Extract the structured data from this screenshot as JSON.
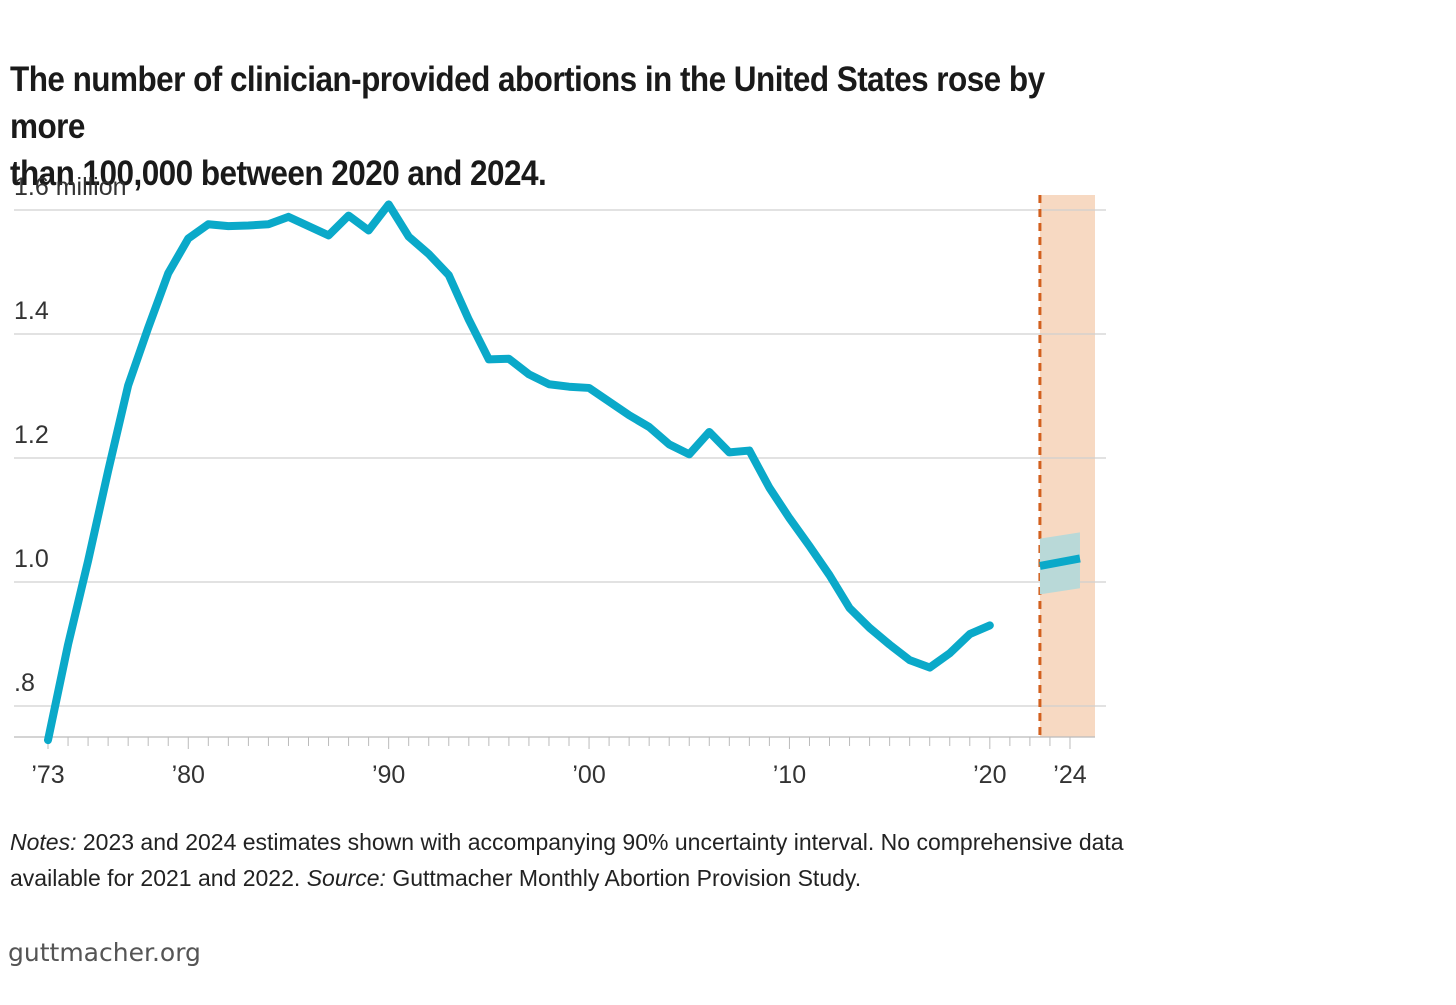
{
  "title": {
    "line1": "The number of clinician-provided abortions in the United States rose by more",
    "line2": "than 100,000 between 2020 and 2024."
  },
  "colors": {
    "line": "#0aa9c9",
    "band": "#f7d9c2",
    "divider": "#d2601e",
    "interval": "#b9d9d8",
    "grid": "#d0d0d0"
  },
  "chart_data": {
    "type": "line",
    "title": "The number of clinician-provided abortions in the United States rose by more than 100,000 between 2020 and 2024.",
    "xlabel": "",
    "ylabel": "",
    "unit": "million",
    "xlim": [
      1973,
      2024.5
    ],
    "ylim": [
      0.75,
      1.6
    ],
    "y_ticks": [
      {
        "value": 0.8,
        "label": ".8"
      },
      {
        "value": 1.0,
        "label": "1.0"
      },
      {
        "value": 1.2,
        "label": "1.2"
      },
      {
        "value": 1.4,
        "label": "1.4"
      },
      {
        "value": 1.6,
        "label": "1.6 million"
      }
    ],
    "x_ticks": [
      {
        "value": 1973,
        "label": "’73"
      },
      {
        "value": 1980,
        "label": "’80"
      },
      {
        "value": 1990,
        "label": "’90"
      },
      {
        "value": 2000,
        "label": "’00"
      },
      {
        "value": 2010,
        "label": "’10"
      },
      {
        "value": 2020,
        "label": "’20"
      },
      {
        "value": 2024,
        "label": "’24"
      }
    ],
    "series": [
      {
        "name": "Clinician-provided abortions",
        "x": [
          1973,
          1974,
          1975,
          1976,
          1977,
          1978,
          1979,
          1980,
          1981,
          1982,
          1983,
          1984,
          1985,
          1986,
          1987,
          1988,
          1989,
          1990,
          1991,
          1992,
          1993,
          1994,
          1995,
          1996,
          1997,
          1998,
          1999,
          2000,
          2001,
          2002,
          2003,
          2004,
          2005,
          2006,
          2007,
          2008,
          2009,
          2010,
          2011,
          2012,
          2013,
          2014,
          2015,
          2016,
          2017,
          2018,
          2019,
          2020
        ],
        "values": [
          0.745,
          0.899,
          1.034,
          1.179,
          1.317,
          1.41,
          1.498,
          1.554,
          1.577,
          1.574,
          1.575,
          1.577,
          1.589,
          1.574,
          1.559,
          1.591,
          1.567,
          1.609,
          1.557,
          1.529,
          1.495,
          1.423,
          1.359,
          1.36,
          1.335,
          1.319,
          1.315,
          1.313,
          1.291,
          1.269,
          1.25,
          1.222,
          1.206,
          1.242,
          1.209,
          1.212,
          1.152,
          1.103,
          1.058,
          1.011,
          0.958,
          0.926,
          0.899,
          0.874,
          0.862,
          0.885,
          0.916,
          0.93
        ]
      }
    ],
    "estimates": [
      {
        "x": 2023,
        "value": 1.026,
        "low": 0.98,
        "high": 1.07
      },
      {
        "x": 2024,
        "value": 1.038,
        "low": 0.99,
        "high": 1.08
      }
    ],
    "no_data_range": [
      2021,
      2022
    ],
    "shaded_region": [
      2023,
      2024
    ],
    "grid": true,
    "legend": "none"
  },
  "notes": {
    "notes_label": "Notes:",
    "notes_text": " 2023 and 2024 estimates shown with accompanying 90% uncertainty interval. No comprehensive data available for 2021 and 2022. ",
    "source_label": "Source:",
    "source_text": " Guttmacher Monthly Abortion Provision Study."
  },
  "footer": {
    "text": "guttmacher.org"
  }
}
